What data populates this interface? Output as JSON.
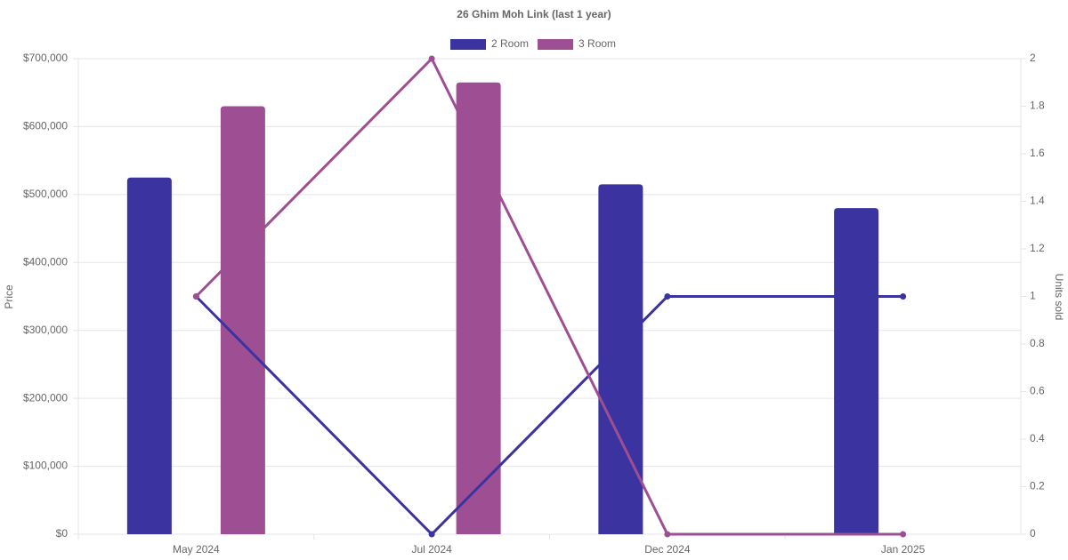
{
  "chart_data": {
    "type": "bar-line",
    "title": "26 Ghim Moh Link (last 1 year)",
    "y_label": "Price",
    "y2_label": "Units sold",
    "categories": [
      "May 2024",
      "Jul 2024",
      "Dec 2024",
      "Jan 2025"
    ],
    "series": [
      {
        "name": "2 Room",
        "color": "#3a33a0",
        "values": [
          525000,
          null,
          515000,
          480000
        ],
        "units_sold": [
          1,
          0,
          1,
          1
        ]
      },
      {
        "name": "3 Room",
        "color": "#9e4f94",
        "values": [
          630000,
          665000,
          null,
          null
        ],
        "units_sold": [
          1,
          2,
          0,
          0
        ]
      }
    ],
    "ylim": [
      0,
      700000
    ],
    "yticks": [
      {
        "value": 0,
        "label": "$0"
      },
      {
        "value": 100000,
        "label": "$100,000"
      },
      {
        "value": 200000,
        "label": "$200,000"
      },
      {
        "value": 300000,
        "label": "$300,000"
      },
      {
        "value": 400000,
        "label": "$400,000"
      },
      {
        "value": 500000,
        "label": "$500,000"
      },
      {
        "value": 600000,
        "label": "$600,000"
      },
      {
        "value": 700000,
        "label": "$700,000"
      }
    ],
    "y2lim": [
      0,
      2
    ],
    "y2ticks": [
      0,
      0.2,
      0.4,
      0.6,
      0.8,
      1,
      1.2,
      1.4,
      1.6,
      1.8,
      2
    ],
    "grid": true
  }
}
